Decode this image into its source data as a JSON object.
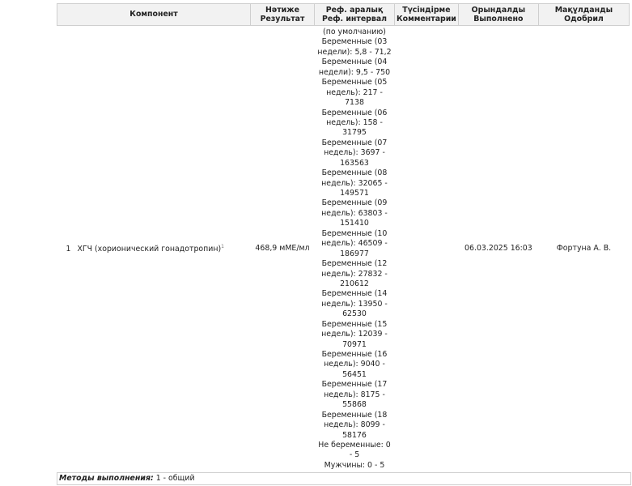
{
  "table": {
    "headers": [
      {
        "kk": "",
        "ru": "Компонент"
      },
      {
        "kk": "Нәтиже",
        "ru": "Результат"
      },
      {
        "kk": "Реф. аралық",
        "ru": "Реф. интервал"
      },
      {
        "kk": "Түсіндірме",
        "ru": "Комментарии"
      },
      {
        "kk": "Орындалды",
        "ru": "Выполнено"
      },
      {
        "kk": "Мақұлданды",
        "ru": "Одобрил"
      }
    ],
    "row": {
      "index": "1",
      "component": "ХГЧ (хорионический гонадотропин)",
      "footnote": "1",
      "result": "468,9 мМЕ/мл",
      "ref_lines": [
        "(по умолчанию)",
        "Беременные (03",
        "недели): 5,8 - 71,2",
        "Беременные (04",
        "недели): 9,5 - 750",
        "Беременные (05",
        "недель): 217 -",
        "7138",
        "Беременные (06",
        "недель): 158 -",
        "31795",
        "Беременные (07",
        "недель): 3697 -",
        "163563",
        "Беременные (08",
        "недель): 32065 -",
        "149571",
        "Беременные (09",
        "недель): 63803 -",
        "151410",
        "Беременные (10",
        "недель): 46509 -",
        "186977",
        "Беременные (12",
        "недель): 27832 -",
        "210612",
        "Беременные (14",
        "недель): 13950 -",
        "62530",
        "Беременные (15",
        "недель): 12039 -",
        "70971",
        "Беременные (16",
        "недель): 9040 -",
        "56451",
        "Беременные (17",
        "недель): 8175 -",
        "55868",
        "Беременные (18",
        "недель): 8099 -",
        "58176",
        "Не беременные: 0",
        "- 5",
        "Мужчины: 0 - 5"
      ],
      "comment": "",
      "performed": "06.03.2025 16:03",
      "approved": "Фортуна А. В."
    }
  },
  "footer": {
    "label": "Методы выполнения:",
    "value": " 1 - общий"
  }
}
